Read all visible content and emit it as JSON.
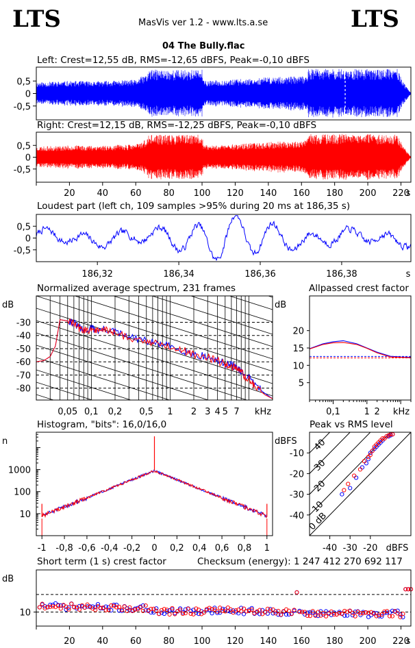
{
  "header": {
    "logo_left": "LTS",
    "logo_right": "LTS",
    "app": "MasVis ver 1.2 - www.lts.a.se",
    "file": "04 The Bully.flac"
  },
  "colors": {
    "left": "#0000ff",
    "right": "#ff0000",
    "dashes": "#000000"
  },
  "chart_data": [
    {
      "type": "area",
      "title": "Left: Crest=12,55 dB, RMS=-12,65 dBFS, Peak=-0,10 dBFS",
      "series_color": "blue",
      "yticks": [
        "0.5",
        "0",
        "-0.5"
      ],
      "ylim": [
        -1,
        1
      ],
      "xlim": [
        0,
        226
      ],
      "marker_x": 186.35,
      "envelope": [
        {
          "t": 0,
          "amp": 0.45
        },
        {
          "t": 20,
          "amp": 0.5
        },
        {
          "t": 40,
          "amp": 0.5
        },
        {
          "t": 60,
          "amp": 0.55
        },
        {
          "t": 67,
          "amp": 0.8
        },
        {
          "t": 68,
          "amp": 0.95
        },
        {
          "t": 100,
          "amp": 0.95
        },
        {
          "t": 101,
          "amp": 0.5
        },
        {
          "t": 130,
          "amp": 0.6
        },
        {
          "t": 140,
          "amp": 0.65
        },
        {
          "t": 163,
          "amp": 0.7
        },
        {
          "t": 164,
          "amp": 0.98
        },
        {
          "t": 218,
          "amp": 0.98
        },
        {
          "t": 222,
          "amp": 0.4
        },
        {
          "t": 226,
          "amp": 0.02
        }
      ]
    },
    {
      "type": "area",
      "title": "Right: Crest=12,15 dB, RMS=-12,25 dBFS, Peak=-0,10 dBFS",
      "series_color": "red",
      "yticks": [
        "0.5",
        "0",
        "-0.5"
      ],
      "ylim": [
        -1,
        1
      ],
      "xlim": [
        0,
        226
      ],
      "xticks": [
        "20",
        "40",
        "60",
        "80",
        "100",
        "120",
        "140",
        "160",
        "180",
        "200",
        "220"
      ],
      "xunit": "s",
      "envelope": [
        {
          "t": 0,
          "amp": 0.45
        },
        {
          "t": 20,
          "amp": 0.5
        },
        {
          "t": 40,
          "amp": 0.5
        },
        {
          "t": 60,
          "amp": 0.55
        },
        {
          "t": 67,
          "amp": 0.8
        },
        {
          "t": 68,
          "amp": 0.95
        },
        {
          "t": 100,
          "amp": 0.95
        },
        {
          "t": 101,
          "amp": 0.5
        },
        {
          "t": 130,
          "amp": 0.6
        },
        {
          "t": 140,
          "amp": 0.65
        },
        {
          "t": 163,
          "amp": 0.7
        },
        {
          "t": 164,
          "amp": 0.98
        },
        {
          "t": 218,
          "amp": 0.98
        },
        {
          "t": 222,
          "amp": 0.4
        },
        {
          "t": 226,
          "amp": 0.02
        }
      ]
    },
    {
      "type": "line",
      "title": "Loudest part (left  ch, 109 samples >95% during 20 ms at 186,35 s)",
      "series_color": "blue",
      "yticks": [
        "0.5",
        "0",
        "-0.5"
      ],
      "ylim": [
        -1,
        1
      ],
      "xlim": [
        186.305,
        186.397
      ],
      "xticks": [
        "186,32",
        "186,34",
        "186,36",
        "186,38"
      ],
      "xunit": "s"
    },
    {
      "type": "line",
      "title": "Normalized average spectrum, 231 frames",
      "ylabel": "dB",
      "yticks": [
        "-30",
        "-40",
        "-50",
        "-60",
        "-70",
        "-80"
      ],
      "ylim": [
        -89,
        -10
      ],
      "xlim_khz": [
        0.02,
        20
      ],
      "xticks": [
        "0,05",
        "0,1",
        "0,2",
        "0,5",
        "1",
        "2",
        "3",
        "4",
        "5",
        "7"
      ],
      "xunit": "kHz",
      "series": [
        {
          "name": "left",
          "points": [
            [
              0.02,
              -60
            ],
            [
              0.025,
              -59
            ],
            [
              0.03,
              -56
            ],
            [
              0.035,
              -48
            ],
            [
              0.04,
              -28
            ],
            [
              0.05,
              -29
            ],
            [
              0.06,
              -31
            ],
            [
              0.07,
              -35
            ],
            [
              0.08,
              -37
            ],
            [
              0.1,
              -35
            ],
            [
              0.12,
              -37
            ],
            [
              0.15,
              -36
            ],
            [
              0.2,
              -38
            ],
            [
              0.3,
              -42
            ],
            [
              0.5,
              -45
            ],
            [
              0.7,
              -47
            ],
            [
              1,
              -49
            ],
            [
              1.5,
              -52
            ],
            [
              2,
              -55
            ],
            [
              3,
              -57
            ],
            [
              4,
              -60
            ],
            [
              5,
              -62
            ],
            [
              6,
              -63
            ],
            [
              7,
              -65
            ],
            [
              8,
              -69
            ],
            [
              10,
              -73
            ],
            [
              12,
              -78
            ],
            [
              16,
              -84
            ],
            [
              20,
              -88
            ]
          ]
        },
        {
          "name": "right",
          "points": [
            [
              0.02,
              -60
            ],
            [
              0.025,
              -59
            ],
            [
              0.03,
              -56
            ],
            [
              0.035,
              -48
            ],
            [
              0.04,
              -28
            ],
            [
              0.05,
              -29
            ],
            [
              0.06,
              -32
            ],
            [
              0.07,
              -35
            ],
            [
              0.08,
              -37
            ],
            [
              0.1,
              -36
            ],
            [
              0.12,
              -37
            ],
            [
              0.15,
              -36
            ],
            [
              0.2,
              -39
            ],
            [
              0.3,
              -42
            ],
            [
              0.5,
              -45
            ],
            [
              0.7,
              -47
            ],
            [
              1,
              -49
            ],
            [
              1.5,
              -52
            ],
            [
              2,
              -55
            ],
            [
              3,
              -57
            ],
            [
              4,
              -60
            ],
            [
              5,
              -62
            ],
            [
              6,
              -64
            ],
            [
              7,
              -65
            ],
            [
              8,
              -69
            ],
            [
              10,
              -74
            ],
            [
              12,
              -79
            ],
            [
              16,
              -85
            ],
            [
              20,
              -88
            ]
          ]
        }
      ]
    },
    {
      "type": "line",
      "title": "Allpassed crest factor",
      "ylabel": "dB",
      "yticks": [
        "20",
        "15",
        "10",
        "5"
      ],
      "ylim": [
        0,
        30
      ],
      "xlim_khz": [
        0.02,
        20
      ],
      "xticks": [
        "0,1",
        "1",
        "2"
      ],
      "xunit": "kHz",
      "reference_lines": [
        12.55,
        12.15
      ],
      "series": [
        {
          "name": "left",
          "points": [
            [
              0.02,
              14.8
            ],
            [
              0.05,
              16.2
            ],
            [
              0.1,
              16.8
            ],
            [
              0.2,
              17.1
            ],
            [
              0.5,
              16.2
            ],
            [
              1,
              15.0
            ],
            [
              2,
              13.8
            ],
            [
              5,
              12.6
            ],
            [
              10,
              12.4
            ],
            [
              20,
              12.3
            ]
          ]
        },
        {
          "name": "right",
          "points": [
            [
              0.02,
              14.7
            ],
            [
              0.05,
              16.0
            ],
            [
              0.1,
              16.5
            ],
            [
              0.2,
              16.6
            ],
            [
              0.5,
              16.0
            ],
            [
              1,
              14.9
            ],
            [
              2,
              13.6
            ],
            [
              5,
              12.4
            ],
            [
              10,
              12.3
            ],
            [
              20,
              12.2
            ]
          ]
        }
      ]
    },
    {
      "type": "line",
      "title": "Histogram, \"bits\": 16,0/16,0",
      "ylabel": "n",
      "yticks": [
        "1000",
        "100",
        "10"
      ],
      "ylog": true,
      "ylim": [
        1,
        50000
      ],
      "xlim": [
        -1.05,
        1.05
      ],
      "xticks": [
        "-1",
        "-0,8",
        "-0,6",
        "-0,4",
        "-0,2",
        "0",
        "0,2",
        "0,4",
        "0,6",
        "0,8",
        "1"
      ],
      "peak_center": 900,
      "edge_level": 8
    },
    {
      "type": "scatter",
      "title": "Peak vs RMS level",
      "ylabel": "dBFS",
      "xunit": "dBFS",
      "yticks": [
        "-10",
        "-20",
        "-30",
        "-40"
      ],
      "xticks": [
        "-40",
        "-30",
        "-20"
      ],
      "xlim": [
        -50,
        0
      ],
      "ylim": [
        -50,
        0
      ],
      "crest_lines": [
        "0 dB",
        "10",
        "20",
        "30",
        "40"
      ],
      "series": [
        {
          "name": "left",
          "points": [
            [
              -9,
              -1
            ],
            [
              -10,
              -1.5
            ],
            [
              -11,
              -2
            ],
            [
              -12,
              -2
            ],
            [
              -13,
              -3
            ],
            [
              -14,
              -4
            ],
            [
              -15,
              -5
            ],
            [
              -16,
              -6
            ],
            [
              -17,
              -7
            ],
            [
              -18,
              -8
            ],
            [
              -19,
              -9
            ],
            [
              -20,
              -10
            ],
            [
              -21,
              -13
            ],
            [
              -22,
              -15
            ],
            [
              -24,
              -17
            ],
            [
              -27,
              -22
            ],
            [
              -30,
              -27
            ],
            [
              -34,
              -30
            ]
          ]
        },
        {
          "name": "right",
          "points": [
            [
              -9,
              -1
            ],
            [
              -10,
              -1
            ],
            [
              -11,
              -1.5
            ],
            [
              -12,
              -2
            ],
            [
              -13,
              -3
            ],
            [
              -14,
              -3
            ],
            [
              -15,
              -4
            ],
            [
              -16,
              -5
            ],
            [
              -17,
              -6
            ],
            [
              -18,
              -7
            ],
            [
              -19,
              -9
            ],
            [
              -20,
              -11
            ],
            [
              -21,
              -12
            ],
            [
              -23,
              -14
            ],
            [
              -25,
              -18
            ],
            [
              -28,
              -21
            ],
            [
              -31,
              -25
            ],
            [
              -33,
              -28
            ]
          ]
        }
      ]
    },
    {
      "type": "scatter",
      "title": "Short term (1 s) crest factor",
      "checksum_label": "Checksum (energy):  1 247 412 270 692 117",
      "ylabel": "dB",
      "yticks": [
        "10"
      ],
      "ylim": [
        6,
        22
      ],
      "xlim": [
        0,
        226
      ],
      "reference_lines": [
        15,
        10
      ],
      "xticks": [
        "20",
        "40",
        "60",
        "80",
        "100",
        "120",
        "140",
        "160",
        "180",
        "200",
        "220"
      ],
      "xunit": "s"
    }
  ]
}
